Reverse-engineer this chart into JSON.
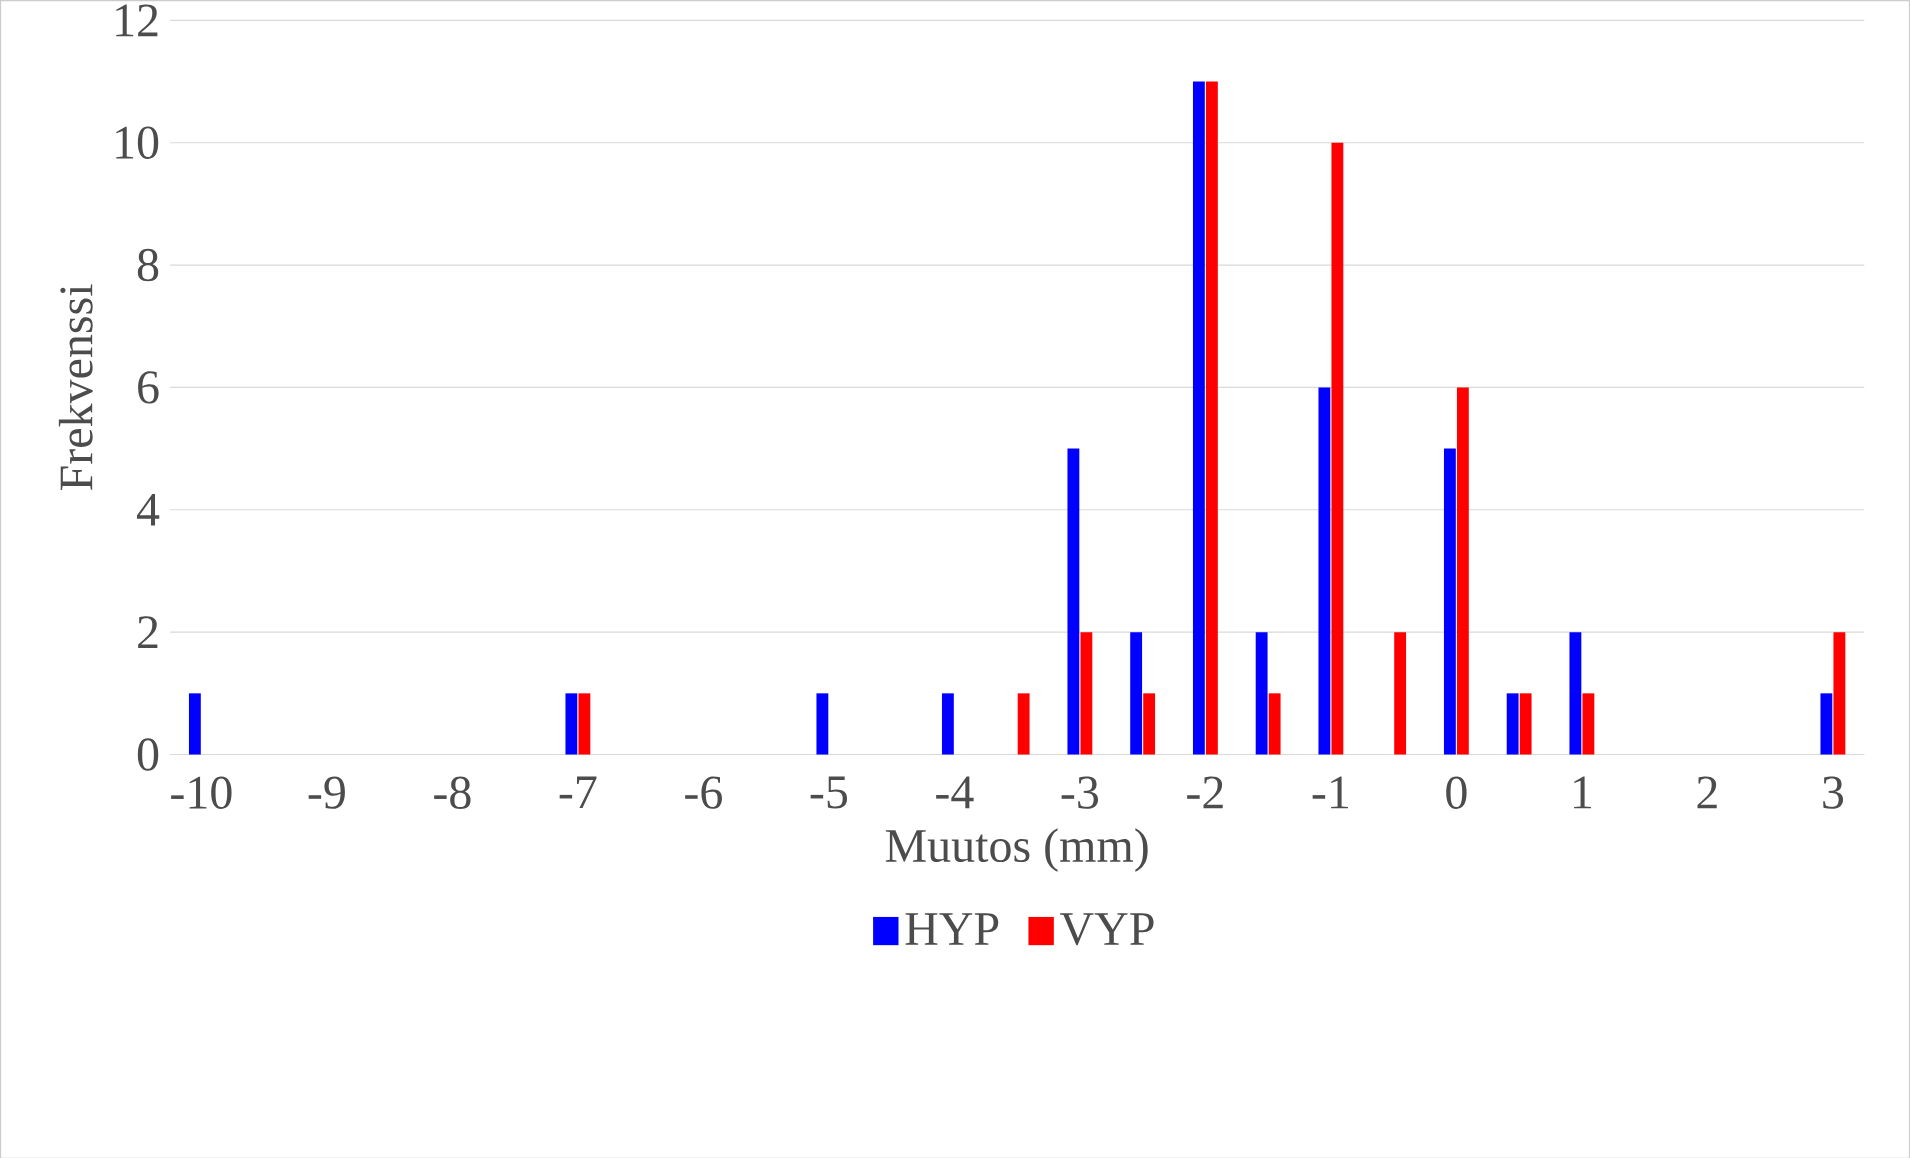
{
  "chart_data": {
    "type": "bar",
    "xlabel": "Muutos (mm)",
    "ylabel": "Frekvenssi",
    "categories": [
      "-10",
      null,
      "-9",
      null,
      "-8",
      null,
      "-7",
      null,
      "-6",
      null,
      "-5",
      null,
      "-4",
      null,
      "-3",
      null,
      "-2",
      null,
      "-1",
      null,
      "0",
      null,
      "1",
      null,
      "2",
      null,
      "3"
    ],
    "series": [
      {
        "name": "HYP",
        "color": "#0000ff",
        "values": [
          1,
          0,
          0,
          0,
          0,
          0,
          1,
          0,
          0,
          0,
          1,
          0,
          1,
          0,
          5,
          2,
          11,
          2,
          6,
          0,
          5,
          1,
          2,
          0,
          0,
          0,
          1
        ]
      },
      {
        "name": "VYP",
        "color": "#ff0000",
        "values": [
          0,
          0,
          0,
          0,
          0,
          0,
          1,
          0,
          0,
          0,
          0,
          0,
          0,
          1,
          2,
          1,
          11,
          1,
          10,
          2,
          6,
          1,
          1,
          0,
          0,
          0,
          2
        ]
      }
    ],
    "ylim": [
      0,
      12
    ],
    "yticks": [
      0,
      2,
      4,
      6,
      8,
      10,
      12
    ],
    "grid": "y",
    "legend": "bottom"
  }
}
